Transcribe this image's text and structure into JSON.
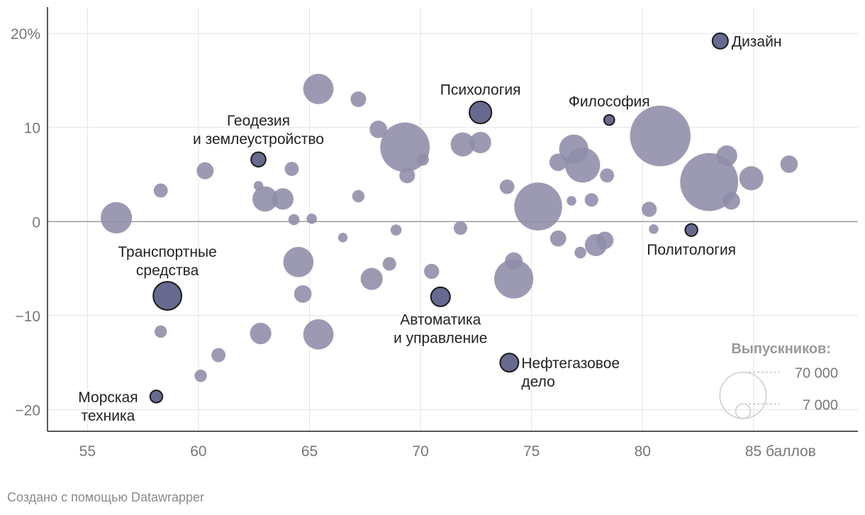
{
  "chart_data": {
    "type": "scatter",
    "title": "",
    "xlabel": "",
    "ylabel": "",
    "x_ticks": [
      {
        "value": 55,
        "label": "55"
      },
      {
        "value": 60,
        "label": "60"
      },
      {
        "value": 65,
        "label": "65"
      },
      {
        "value": 70,
        "label": "70"
      },
      {
        "value": 75,
        "label": "75"
      },
      {
        "value": 80,
        "label": "80"
      },
      {
        "value": 85,
        "label": "85 баллов"
      }
    ],
    "y_ticks": [
      {
        "value": 20,
        "label": "20%"
      },
      {
        "value": 10,
        "label": "10"
      },
      {
        "value": 0,
        "label": "0"
      },
      {
        "value": -10,
        "label": "−10"
      },
      {
        "value": -20,
        "label": "−20"
      }
    ],
    "xlim": [
      53.2,
      89.7
    ],
    "ylim": [
      -22.3,
      22.8
    ],
    "grid": true,
    "colors": {
      "bubble": "#8e8ca8",
      "highlight": "#676a8e",
      "highlight_stroke": "#1a1a1a",
      "grid": "#e3e3e3",
      "zero_line": "#9a9a9a"
    },
    "size_legend": {
      "title": "Выпускников:",
      "entries": [
        {
          "value": 70000,
          "label": "70 000"
        },
        {
          "value": 7000,
          "label": "7 000"
        }
      ]
    },
    "points": [
      {
        "x": 56.3,
        "y": 0.4,
        "size": 32000
      },
      {
        "x": 58.3,
        "y": 3.3,
        "size": 6500
      },
      {
        "x": 58.3,
        "y": -11.7,
        "size": 5000
      },
      {
        "x": 60.1,
        "y": -16.4,
        "size": 5000
      },
      {
        "x": 60.3,
        "y": 5.4,
        "size": 9500
      },
      {
        "x": 60.9,
        "y": -14.2,
        "size": 6500
      },
      {
        "x": 62.7,
        "y": 3.8,
        "size": 3000
      },
      {
        "x": 62.8,
        "y": -11.9,
        "size": 15000
      },
      {
        "x": 63.0,
        "y": 2.4,
        "size": 21000
      },
      {
        "x": 63.8,
        "y": 2.4,
        "size": 15000
      },
      {
        "x": 64.2,
        "y": 5.6,
        "size": 6500
      },
      {
        "x": 64.3,
        "y": 0.2,
        "size": 4000
      },
      {
        "x": 64.5,
        "y": -4.3,
        "size": 30000
      },
      {
        "x": 64.7,
        "y": -7.7,
        "size": 10000
      },
      {
        "x": 65.1,
        "y": 0.3,
        "size": 3500
      },
      {
        "x": 65.4,
        "y": 14.1,
        "size": 30000
      },
      {
        "x": 65.4,
        "y": -12.0,
        "size": 30000
      },
      {
        "x": 66.5,
        "y": -1.7,
        "size": 3000
      },
      {
        "x": 67.2,
        "y": 13.0,
        "size": 8000
      },
      {
        "x": 67.2,
        "y": 2.7,
        "size": 5000
      },
      {
        "x": 67.8,
        "y": -6.1,
        "size": 16000
      },
      {
        "x": 68.1,
        "y": 9.8,
        "size": 10000
      },
      {
        "x": 68.6,
        "y": -4.5,
        "size": 6000
      },
      {
        "x": 68.9,
        "y": -0.9,
        "size": 4000
      },
      {
        "x": 69.3,
        "y": 7.9,
        "size": 80000
      },
      {
        "x": 69.4,
        "y": 4.9,
        "size": 8000
      },
      {
        "x": 70.1,
        "y": 6.6,
        "size": 5000
      },
      {
        "x": 70.5,
        "y": -5.3,
        "size": 7500
      },
      {
        "x": 71.8,
        "y": -0.7,
        "size": 6000
      },
      {
        "x": 71.9,
        "y": 8.2,
        "size": 19000
      },
      {
        "x": 72.7,
        "y": 8.4,
        "size": 15000
      },
      {
        "x": 73.9,
        "y": 3.7,
        "size": 7000
      },
      {
        "x": 74.2,
        "y": -4.2,
        "size": 10000
      },
      {
        "x": 74.2,
        "y": -6.1,
        "size": 50000
      },
      {
        "x": 75.3,
        "y": 1.6,
        "size": 75000
      },
      {
        "x": 76.2,
        "y": 6.3,
        "size": 10000
      },
      {
        "x": 76.2,
        "y": -1.8,
        "size": 8500
      },
      {
        "x": 76.8,
        "y": 2.2,
        "size": 3000
      },
      {
        "x": 76.9,
        "y": 7.7,
        "size": 28000
      },
      {
        "x": 77.2,
        "y": -3.3,
        "size": 4500
      },
      {
        "x": 77.3,
        "y": 6.0,
        "size": 40000
      },
      {
        "x": 77.7,
        "y": 2.3,
        "size": 6000
      },
      {
        "x": 77.9,
        "y": -2.5,
        "size": 16000
      },
      {
        "x": 78.3,
        "y": -2.0,
        "size": 10000
      },
      {
        "x": 78.4,
        "y": 4.9,
        "size": 6500
      },
      {
        "x": 80.3,
        "y": 1.3,
        "size": 7500
      },
      {
        "x": 80.5,
        "y": -0.8,
        "size": 3000
      },
      {
        "x": 80.8,
        "y": 9.1,
        "size": 120000
      },
      {
        "x": 83.0,
        "y": 4.2,
        "size": 110000
      },
      {
        "x": 83.8,
        "y": 7.0,
        "size": 14000
      },
      {
        "x": 84.0,
        "y": 2.2,
        "size": 10000
      },
      {
        "x": 84.9,
        "y": 4.6,
        "size": 19000
      },
      {
        "x": 86.6,
        "y": 6.1,
        "size": 10000
      }
    ],
    "highlighted": [
      {
        "name": "Дизайн",
        "x": 83.5,
        "y": 19.2,
        "size": 8000
      },
      {
        "name": "Философия",
        "x": 78.5,
        "y": 10.8,
        "size": 3500
      },
      {
        "name": "Психология",
        "x": 72.7,
        "y": 11.6,
        "size": 16000
      },
      {
        "name": "Геодезия и землеустройство",
        "x": 62.7,
        "y": 6.6,
        "size": 7000
      },
      {
        "name": "Политология",
        "x": 82.2,
        "y": -0.9,
        "size": 5000
      },
      {
        "name": "Транспортные средства",
        "x": 58.6,
        "y": -7.9,
        "size": 26000
      },
      {
        "name": "Автоматика и управление",
        "x": 70.9,
        "y": -8.0,
        "size": 12000
      },
      {
        "name": "Нефтегазовое дело",
        "x": 74.0,
        "y": -15.0,
        "size": 11000
      },
      {
        "name": "Морская техника",
        "x": 58.1,
        "y": -18.6,
        "size": 5000
      }
    ],
    "labels": [
      {
        "lines": [
          "Дизайн"
        ],
        "anchor": "start",
        "x": 83.5,
        "y": 19.2,
        "dx": 16,
        "dy": 8
      },
      {
        "lines": [
          "Философия"
        ],
        "anchor": "middle",
        "x": 78.5,
        "y": 10.8,
        "dx": 0,
        "dy": -19
      },
      {
        "lines": [
          "Психология"
        ],
        "anchor": "middle",
        "x": 72.7,
        "y": 11.6,
        "dx": 0,
        "dy": -25
      },
      {
        "lines": [
          "Геодезия",
          "и землеустройство"
        ],
        "anchor": "middle",
        "x": 62.7,
        "y": 6.6,
        "dx": 0,
        "dy": -48
      },
      {
        "lines": [
          "Политология"
        ],
        "anchor": "middle",
        "x": 82.2,
        "y": -0.9,
        "dx": 0,
        "dy": 35
      },
      {
        "lines": [
          "Транспортные",
          "средства"
        ],
        "anchor": "middle",
        "x": 58.6,
        "y": -7.9,
        "dx": 0,
        "dy": -55
      },
      {
        "lines": [
          "Автоматика",
          "и управление"
        ],
        "anchor": "middle",
        "x": 70.9,
        "y": -8.0,
        "dx": 0,
        "dy": 39
      },
      {
        "lines": [
          "Нефтегазовое",
          "дело"
        ],
        "anchor": "start",
        "x": 74.0,
        "y": -15.0,
        "dx": 17,
        "dy": 8
      },
      {
        "lines": [
          "Морская",
          "техника"
        ],
        "anchor": "middle",
        "x": 58.1,
        "y": -18.6,
        "dx": -68,
        "dy": 8
      }
    ]
  },
  "credit": "Создано с помощью Datawrapper"
}
